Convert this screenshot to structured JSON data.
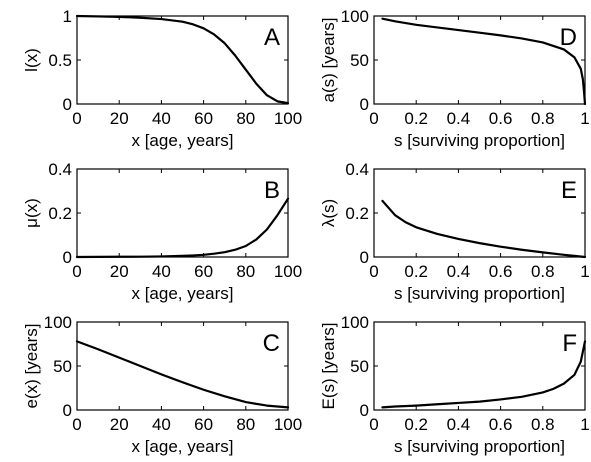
{
  "chart_data": [
    {
      "id": "A",
      "type": "line",
      "panel_label": "A",
      "xlabel": "x [age, years]",
      "ylabel": "l(x)",
      "xlim": [
        0,
        100
      ],
      "ylim": [
        0,
        1
      ],
      "xticks": [
        "0",
        "20",
        "40",
        "60",
        "80",
        "100"
      ],
      "yticks": [
        "0",
        "0.5",
        "1"
      ],
      "series": [
        {
          "x": [
            0,
            10,
            20,
            30,
            40,
            50,
            55,
            60,
            65,
            70,
            75,
            80,
            85,
            90,
            95,
            100
          ],
          "y": [
            1.0,
            0.995,
            0.99,
            0.98,
            0.965,
            0.935,
            0.905,
            0.86,
            0.79,
            0.69,
            0.55,
            0.39,
            0.23,
            0.1,
            0.03,
            0.01
          ]
        }
      ]
    },
    {
      "id": "D",
      "type": "line",
      "panel_label": "D",
      "xlabel": "s [surviving proportion]",
      "ylabel": "a(s) [years]",
      "xlim": [
        0,
        1
      ],
      "ylim": [
        0,
        100
      ],
      "xticks": [
        "0",
        "0.2",
        "0.4",
        "0.6",
        "0.8",
        "1"
      ],
      "yticks": [
        "0",
        "50",
        "100"
      ],
      "series": [
        {
          "x": [
            0.04,
            0.1,
            0.2,
            0.3,
            0.4,
            0.5,
            0.6,
            0.7,
            0.8,
            0.9,
            0.95,
            0.98,
            0.99,
            0.995,
            1.0
          ],
          "y": [
            97,
            94,
            90,
            87,
            84,
            81,
            78,
            74.5,
            70,
            62,
            53,
            40,
            28,
            15,
            0
          ]
        }
      ]
    },
    {
      "id": "B",
      "type": "line",
      "panel_label": "B",
      "xlabel": "x [age, years]",
      "ylabel": "μ(x)",
      "xlim": [
        0,
        100
      ],
      "ylim": [
        0,
        0.4
      ],
      "xticks": [
        "0",
        "20",
        "40",
        "60",
        "80",
        "100"
      ],
      "yticks": [
        "0",
        "0.2",
        "0.4"
      ],
      "series": [
        {
          "x": [
            0,
            10,
            20,
            30,
            40,
            50,
            55,
            60,
            65,
            70,
            75,
            80,
            85,
            90,
            95,
            100
          ],
          "y": [
            0.0,
            0.0005,
            0.001,
            0.0015,
            0.0025,
            0.005,
            0.007,
            0.01,
            0.015,
            0.022,
            0.033,
            0.05,
            0.08,
            0.125,
            0.19,
            0.265
          ]
        }
      ]
    },
    {
      "id": "E",
      "type": "line",
      "panel_label": "E",
      "xlabel": "s [surviving proportion]",
      "ylabel": "λ(s)",
      "xlim": [
        0,
        1
      ],
      "ylim": [
        0,
        0.4
      ],
      "xticks": [
        "0",
        "0.2",
        "0.4",
        "0.6",
        "0.8",
        "1"
      ],
      "yticks": [
        "0",
        "0.2",
        "0.4"
      ],
      "series": [
        {
          "x": [
            0.04,
            0.1,
            0.15,
            0.2,
            0.3,
            0.4,
            0.5,
            0.6,
            0.7,
            0.8,
            0.9,
            0.95,
            1.0
          ],
          "y": [
            0.255,
            0.19,
            0.158,
            0.135,
            0.105,
            0.082,
            0.063,
            0.047,
            0.033,
            0.021,
            0.01,
            0.005,
            0.0
          ]
        }
      ]
    },
    {
      "id": "C",
      "type": "line",
      "panel_label": "C",
      "xlabel": "x [age, years]",
      "ylabel": "e(x) [years]",
      "xlim": [
        0,
        100
      ],
      "ylim": [
        0,
        100
      ],
      "xticks": [
        "0",
        "20",
        "40",
        "60",
        "80",
        "100"
      ],
      "yticks": [
        "0",
        "50",
        "100"
      ],
      "series": [
        {
          "x": [
            0,
            10,
            20,
            30,
            40,
            50,
            60,
            70,
            80,
            90,
            100
          ],
          "y": [
            78,
            69,
            59.5,
            50,
            40.5,
            31.5,
            23,
            15.5,
            9,
            5,
            3
          ]
        }
      ]
    },
    {
      "id": "F",
      "type": "line",
      "panel_label": "F",
      "xlabel": "s [surviving proportion]",
      "ylabel": "E(s) [years]",
      "xlim": [
        0,
        1
      ],
      "ylim": [
        0,
        100
      ],
      "xticks": [
        "0",
        "0.2",
        "0.4",
        "0.6",
        "0.8",
        "1"
      ],
      "yticks": [
        "0",
        "50",
        "100"
      ],
      "series": [
        {
          "x": [
            0.04,
            0.1,
            0.2,
            0.3,
            0.4,
            0.5,
            0.6,
            0.7,
            0.8,
            0.85,
            0.9,
            0.95,
            0.98,
            1.0
          ],
          "y": [
            3,
            4,
            5,
            6.5,
            8,
            9.5,
            12,
            15,
            20,
            24,
            30,
            40,
            55,
            78
          ]
        }
      ]
    }
  ]
}
